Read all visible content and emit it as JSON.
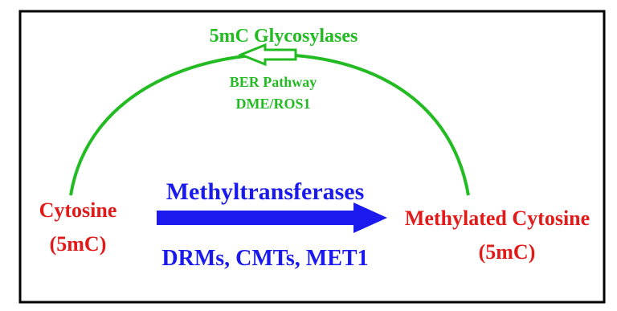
{
  "nodes": [
    {
      "label": "Cytosine",
      "sublabel": "(5mC)"
    },
    {
      "label": "Methylated Cytosine",
      "sublabel": "(5mC)"
    }
  ],
  "forward": {
    "label": "Methyltransferases",
    "sublabel": "DRMs, CMTs, MET1"
  },
  "reverse": {
    "label": "5mC Glycosylases",
    "line1": "BER Pathway",
    "line2": "DME/ROS1"
  }
}
